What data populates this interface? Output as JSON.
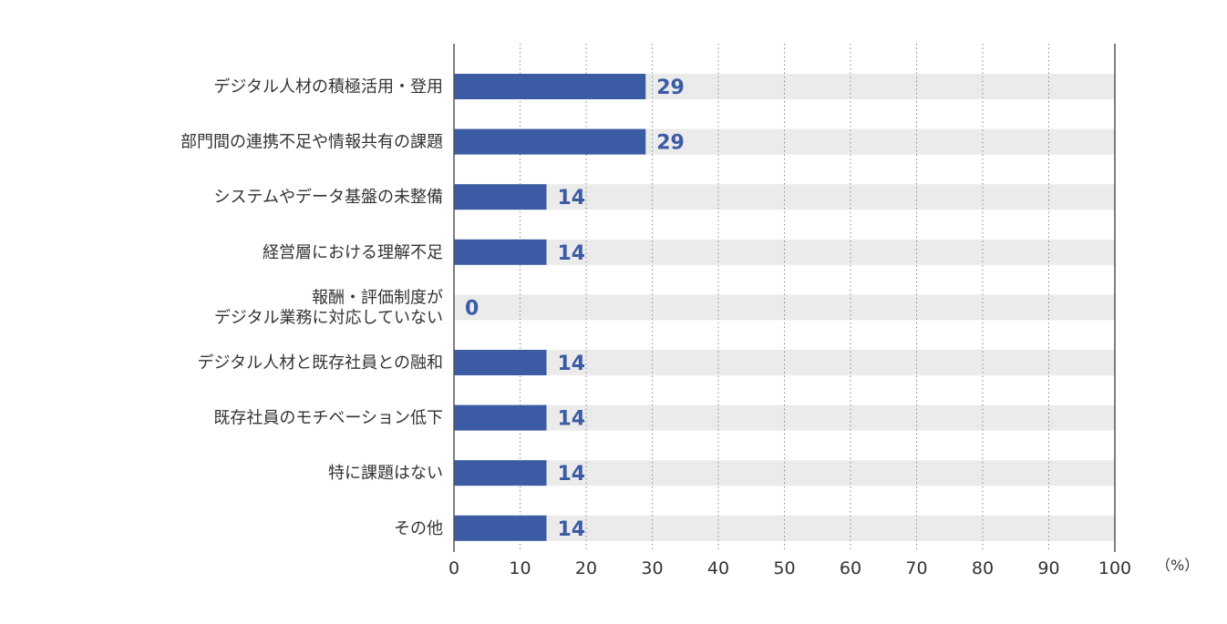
{
  "chart_data": {
    "type": "bar",
    "orientation": "horizontal",
    "categories": [
      [
        "デジタル人材の積極活用・登用"
      ],
      [
        "部門間の連携不足や情報共有の課題"
      ],
      [
        "システムやデータ基盤の未整備"
      ],
      [
        "経営層における理解不足"
      ],
      [
        "報酬・評価制度が",
        "デジタル業務に対応していない"
      ],
      [
        "デジタル人材と既存社員との融和"
      ],
      [
        "既存社員のモチベーション低下"
      ],
      [
        "特に課題はない"
      ],
      [
        "その他"
      ]
    ],
    "values": [
      29,
      29,
      14,
      14,
      0,
      14,
      14,
      14,
      14
    ],
    "value_labels": [
      "29",
      "29",
      "14",
      "14",
      "0",
      "14",
      "14",
      "14",
      "14"
    ],
    "xlim": [
      0,
      100
    ],
    "x_ticks": [
      0,
      10,
      20,
      30,
      40,
      50,
      60,
      70,
      80,
      90,
      100
    ],
    "x_tick_labels": [
      "0",
      "10",
      "20",
      "30",
      "40",
      "50",
      "60",
      "70",
      "80",
      "90",
      "100"
    ],
    "x_unit": "（%）",
    "grid": true,
    "colors": {
      "bar": "#3b5ba5",
      "track": "#ebebeb",
      "value_text": "#3b5ba5",
      "grid": "#8a8a8a",
      "text": "#333333"
    }
  }
}
